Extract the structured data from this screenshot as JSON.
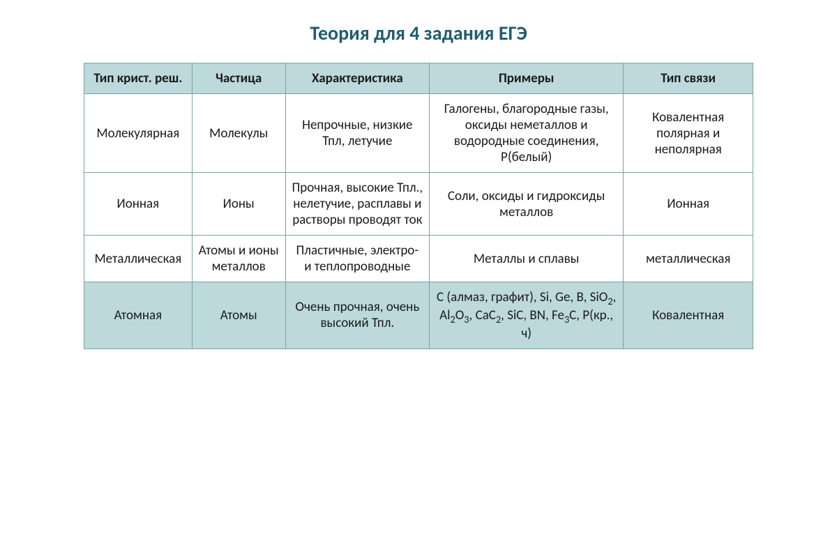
{
  "title": {
    "text": "Теория для 4 задания ЕГЭ",
    "color": "#1e5d6f",
    "fontsize": 28
  },
  "table": {
    "border_color": "#76a5a3",
    "header_bg": "#bdd9dc",
    "highlight_bg": "#bdd9dc",
    "cell_fontsize": 19,
    "text_color": "#1a1a1a",
    "columns": [
      "Тип крист. реш.",
      "Частица",
      "Характеристика",
      "Примеры",
      "Тип связи"
    ],
    "rows": [
      {
        "highlighted": false,
        "cells": [
          "Молекулярная",
          "Молекулы",
          "Непрочные, низкие Тпл, летучие",
          "Галогены, благородные газы, оксиды неметаллов и водородные соединения, Р(белый)",
          "Ковалентная полярная и неполярная"
        ]
      },
      {
        "highlighted": false,
        "cells": [
          "Ионная",
          "Ионы",
          "Прочная, высокие Тпл., нелетучие, расплавы и растворы проводят ток",
          "Соли, оксиды и гидроксиды металлов",
          "Ионная"
        ]
      },
      {
        "highlighted": false,
        "cells": [
          "Металлическая",
          "Атомы и ионы металлов",
          "Пластичные, электро- и теплопроводные",
          "Металлы и сплавы",
          "металлическая"
        ]
      },
      {
        "highlighted": true,
        "cells": [
          "Атомная",
          "Атомы",
          "Очень прочная, очень высокий Тпл.",
          "С (алмаз, графит), Si, Ge, B, SiO₂, Al₂O₃, CaC₂, SiC, BN, Fe₃C, P(кр., ч)",
          "Ковалентная"
        ]
      }
    ]
  }
}
